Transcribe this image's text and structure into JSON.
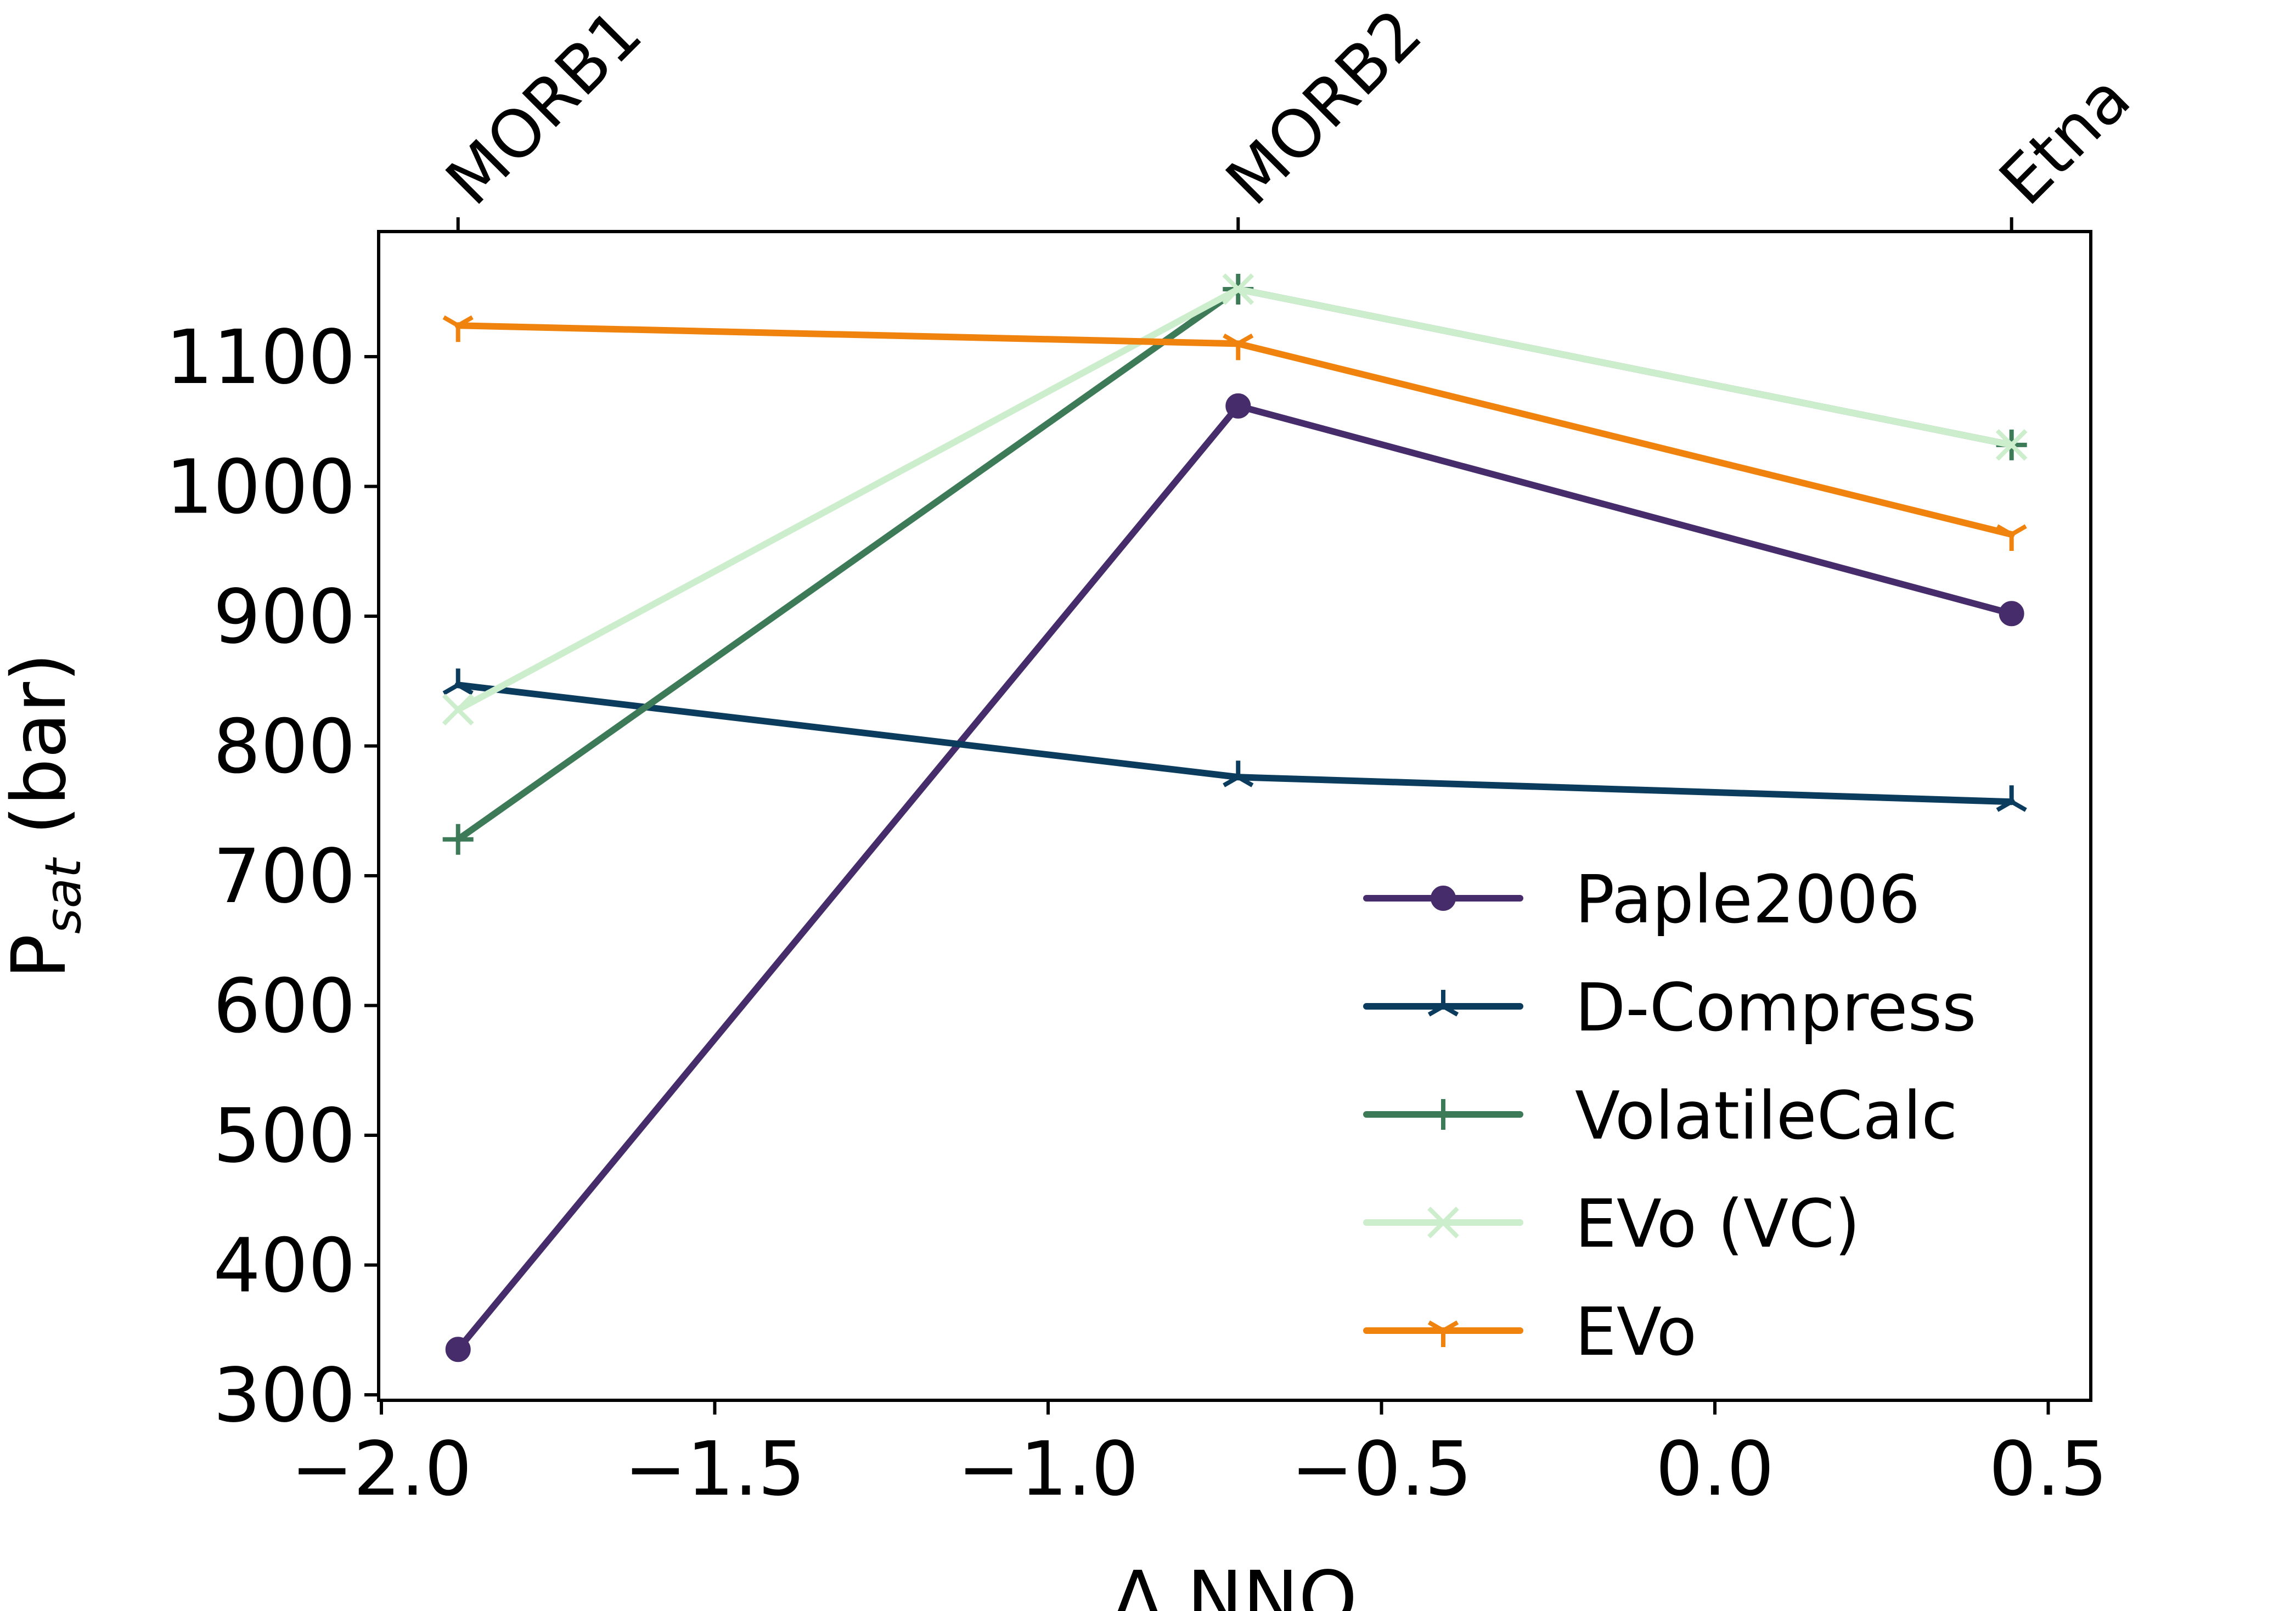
{
  "chart_data": {
    "type": "line",
    "xlabel": "Δ NNO",
    "ylabel_main": "P",
    "ylabel_sub": "sat",
    "ylabel_unit": " (bar)",
    "xlim": [
      -2.0,
      0.55
    ],
    "ylim": [
      295,
      1185
    ],
    "xticks": [
      -2.0,
      -1.5,
      -1.0,
      -0.5,
      0.0,
      0.5
    ],
    "xtick_labels": [
      "−2.0",
      "−1.5",
      "−1.0",
      "−0.5",
      "0.0",
      "0.5"
    ],
    "yticks": [
      300,
      400,
      500,
      600,
      700,
      800,
      900,
      1000,
      1100
    ],
    "ytick_labels": [
      "300",
      "400",
      "500",
      "600",
      "700",
      "800",
      "900",
      "1000",
      "1100"
    ],
    "top_ticks": [
      -1.885,
      -0.715,
      0.445
    ],
    "top_labels": [
      "MORB1",
      "MORB2",
      "Etna"
    ],
    "legend_position": "lower-right",
    "grid": false,
    "x": [
      -1.885,
      -0.715,
      0.445
    ],
    "series": [
      {
        "name": "Paple2006",
        "values": [
          335,
          1062,
          902
        ],
        "color": "#472c6b",
        "marker": "circle"
      },
      {
        "name": "D-Compress",
        "values": [
          847,
          776,
          757
        ],
        "color": "#0b3c5d",
        "marker": "tri"
      },
      {
        "name": "VolatileCalc",
        "values": [
          728,
          1152,
          1032
        ],
        "color": "#3d7a57",
        "marker": "plus"
      },
      {
        "name": "EVo (VC)",
        "values": [
          828,
          1152,
          1032
        ],
        "color": "#cdeecd",
        "marker": "x"
      },
      {
        "name": "EVo",
        "values": [
          1124,
          1110,
          963
        ],
        "color": "#f0820e",
        "marker": "tri-down"
      }
    ]
  }
}
